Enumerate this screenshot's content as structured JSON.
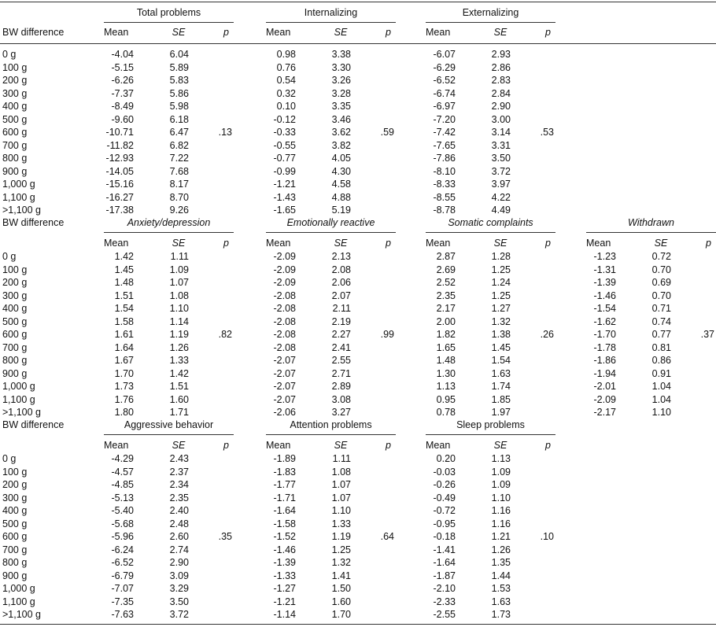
{
  "blocks": [
    {
      "row_header": "BW difference",
      "italic_titles": false,
      "rows": [
        "0 g",
        "100 g",
        "200 g",
        "300 g",
        "400 g",
        "500 g",
        "600 g",
        "700 g",
        "800 g",
        "900 g",
        "1,000 g",
        "1,100 g",
        ">1,100 g"
      ],
      "groups": [
        {
          "title": "Total problems",
          "columns": [
            "Mean",
            "SE",
            "p"
          ],
          "mean": [
            "-4.04",
            "-5.15",
            "-6.26",
            "-7.37",
            "-8.49",
            "-9.60",
            "-10.71",
            "-11.82",
            "-12.93",
            "-14.05",
            "-15.16",
            "-16.27",
            "-17.38"
          ],
          "se": [
            "6.04",
            "5.89",
            "5.83",
            "5.86",
            "5.98",
            "6.18",
            "6.47",
            "6.82",
            "7.22",
            "7.68",
            "8.17",
            "8.70",
            "9.26"
          ],
          "p": ".13"
        },
        {
          "title": "Internalizing",
          "columns": [
            "Mean",
            "SE",
            "p"
          ],
          "mean": [
            "0.98",
            "0.76",
            "0.54",
            "0.32",
            "0.10",
            "-0.12",
            "-0.33",
            "-0.55",
            "-0.77",
            "-0.99",
            "-1.21",
            "-1.43",
            "-1.65"
          ],
          "se": [
            "3.38",
            "3.30",
            "3.26",
            "3.28",
            "3.35",
            "3.46",
            "3.62",
            "3.82",
            "4.05",
            "4.30",
            "4.58",
            "4.88",
            "5.19"
          ],
          "p": ".59"
        },
        {
          "title": "Externalizing",
          "columns": [
            "Mean",
            "SE",
            "p"
          ],
          "mean": [
            "-6.07",
            "-6.29",
            "-6.52",
            "-6.74",
            "-6.97",
            "-7.20",
            "-7.42",
            "-7.65",
            "-7.86",
            "-8.10",
            "-8.33",
            "-8.55",
            "-8.78"
          ],
          "se": [
            "2.93",
            "2.86",
            "2.83",
            "2.84",
            "2.90",
            "3.00",
            "3.14",
            "3.31",
            "3.50",
            "3.72",
            "3.97",
            "4.22",
            "4.49"
          ],
          "p": ".53"
        }
      ]
    },
    {
      "row_header": "BW difference",
      "italic_titles": true,
      "rows": [
        "0 g",
        "100 g",
        "200 g",
        "300 g",
        "400 g",
        "500 g",
        "600 g",
        "700 g",
        "800 g",
        "900 g",
        "1,000 g",
        "1,100 g",
        ">1,100 g"
      ],
      "groups": [
        {
          "title": "Anxiety/depression",
          "columns": [
            "Mean",
            "SE",
            "p"
          ],
          "mean": [
            "1.42",
            "1.45",
            "1.48",
            "1.51",
            "1.54",
            "1.58",
            "1.61",
            "1.64",
            "1.67",
            "1.70",
            "1.73",
            "1.76",
            "1.80"
          ],
          "se": [
            "1.11",
            "1.09",
            "1.07",
            "1.08",
            "1.10",
            "1.14",
            "1.19",
            "1.26",
            "1.33",
            "1.42",
            "1.51",
            "1.60",
            "1.71"
          ],
          "p": ".82"
        },
        {
          "title": "Emotionally reactive",
          "columns": [
            "Mean",
            "SE",
            "p"
          ],
          "mean": [
            "-2.09",
            "-2.09",
            "-2.09",
            "-2.08",
            "-2.08",
            "-2.08",
            "-2.08",
            "-2.08",
            "-2.07",
            "-2.07",
            "-2.07",
            "-2.07",
            "-2.06"
          ],
          "se": [
            "2.13",
            "2.08",
            "2.06",
            "2.07",
            "2.11",
            "2.19",
            "2.27",
            "2.41",
            "2.55",
            "2.71",
            "2.89",
            "3.08",
            "3.27"
          ],
          "p": ".99"
        },
        {
          "title": "Somatic complaints",
          "columns": [
            "Mean",
            "SE",
            "p"
          ],
          "mean": [
            "2.87",
            "2.69",
            "2.52",
            "2.35",
            "2.17",
            "2.00",
            "1.82",
            "1.65",
            "1.48",
            "1.30",
            "1.13",
            "0.95",
            "0.78"
          ],
          "se": [
            "1.28",
            "1.25",
            "1.24",
            "1.25",
            "1.27",
            "1.32",
            "1.38",
            "1.45",
            "1.54",
            "1.63",
            "1.74",
            "1.85",
            "1.97"
          ],
          "p": ".26"
        },
        {
          "title": "Withdrawn",
          "columns": [
            "Mean",
            "SE",
            "p"
          ],
          "mean": [
            "-1.23",
            "-1.31",
            "-1.39",
            "-1.46",
            "-1.54",
            "-1.62",
            "-1.70",
            "-1.78",
            "-1.86",
            "-1.94",
            "-2.01",
            "-2.09",
            "-2.17"
          ],
          "se": [
            "0.72",
            "0.70",
            "0.69",
            "0.70",
            "0.71",
            "0.74",
            "0.77",
            "0.81",
            "0.86",
            "0.91",
            "1.04",
            "1.04",
            "1.10"
          ],
          "p": ".37"
        }
      ]
    },
    {
      "row_header": "BW difference",
      "italic_titles": false,
      "rows": [
        "0 g",
        "100 g",
        "200 g",
        "300 g",
        "400 g",
        "500 g",
        "600 g",
        "700 g",
        "800 g",
        "900 g",
        "1,000 g",
        "1,100 g",
        ">1,100 g"
      ],
      "groups": [
        {
          "title": "Aggressive behavior",
          "columns": [
            "Mean",
            "SE",
            "p"
          ],
          "mean": [
            "-4.29",
            "-4.57",
            "-4.85",
            "-5.13",
            "-5.40",
            "-5.68",
            "-5.96",
            "-6.24",
            "-6.52",
            "-6.79",
            "-7.07",
            "-7.35",
            "-7.63"
          ],
          "se": [
            "2.43",
            "2.37",
            "2.34",
            "2.35",
            "2.40",
            "2.48",
            "2.60",
            "2.74",
            "2.90",
            "3.09",
            "3.29",
            "3.50",
            "3.72"
          ],
          "p": ".35"
        },
        {
          "title": "Attention problems",
          "columns": [
            "Mean",
            "SE",
            "p"
          ],
          "mean": [
            "-1.89",
            "-1.83",
            "-1.77",
            "-1.71",
            "-1.64",
            "-1.58",
            "-1.52",
            "-1.46",
            "-1.39",
            "-1.33",
            "-1.27",
            "-1.21",
            "-1.14"
          ],
          "se": [
            "1.11",
            "1.08",
            "1.07",
            "1.07",
            "1.10",
            "1.33",
            "1.19",
            "1.25",
            "1.32",
            "1.41",
            "1.50",
            "1.60",
            "1.70"
          ],
          "p": ".64"
        },
        {
          "title": "Sleep problems",
          "columns": [
            "Mean",
            "SE",
            "p"
          ],
          "mean": [
            "0.20",
            "-0.03",
            "-0.26",
            "-0.49",
            "-0.72",
            "-0.95",
            "-0.18",
            "-1.41",
            "-1.64",
            "-1.87",
            "-2.10",
            "-2.33",
            "-2.55"
          ],
          "se": [
            "1.13",
            "1.09",
            "1.09",
            "1.10",
            "1.16",
            "1.16",
            "1.21",
            "1.26",
            "1.35",
            "1.44",
            "1.53",
            "1.63",
            "1.73"
          ],
          "p": ".10"
        }
      ]
    }
  ]
}
